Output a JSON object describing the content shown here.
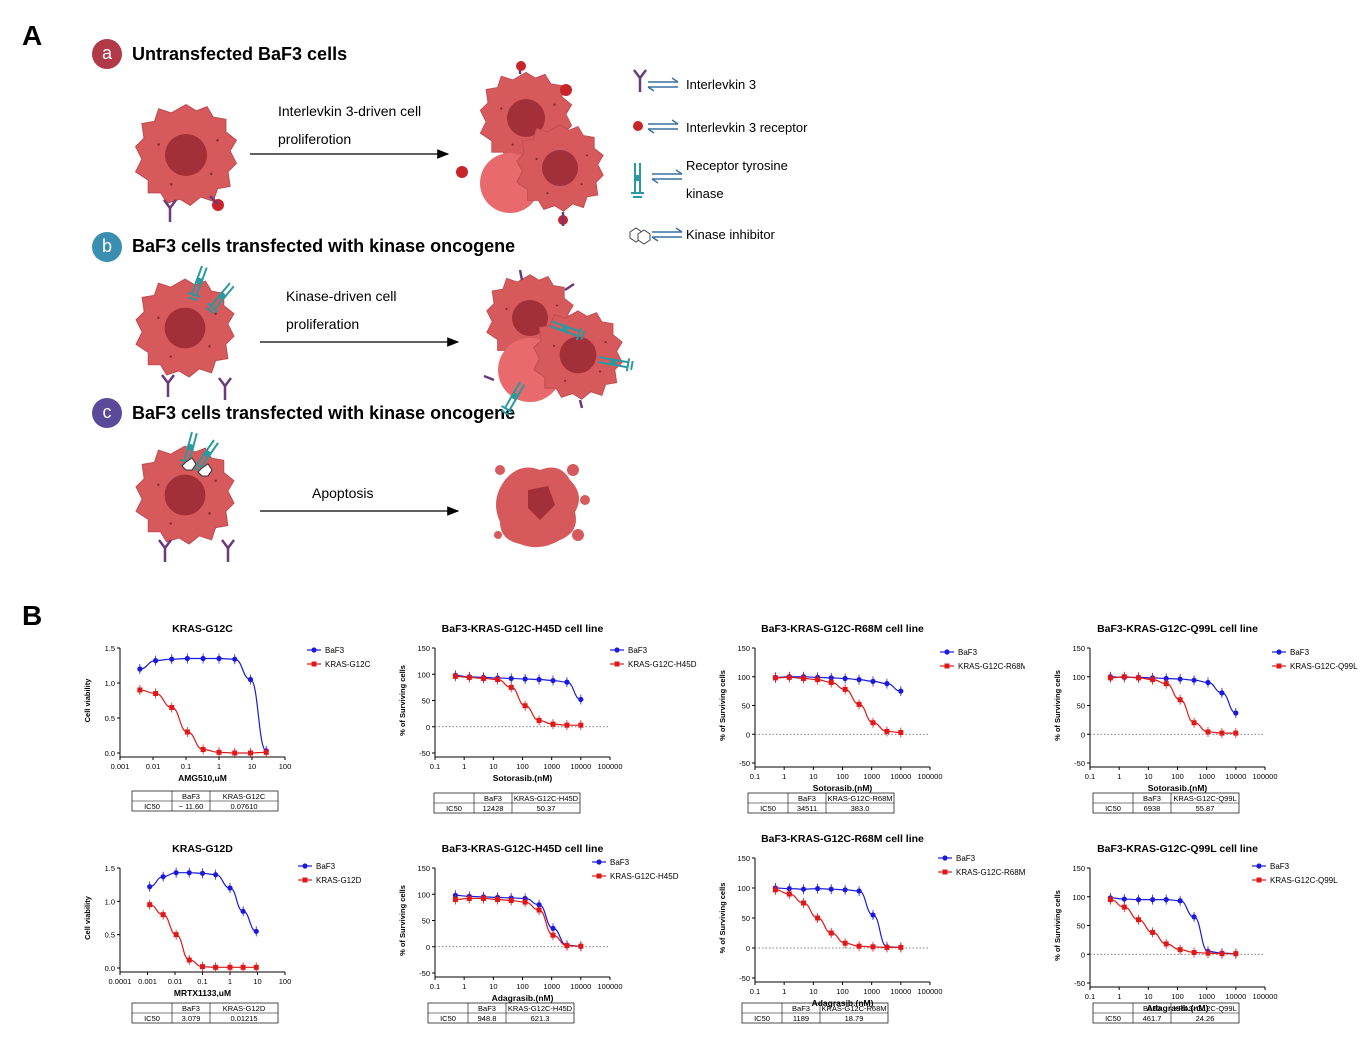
{
  "panelA": {
    "letter": "A",
    "rows": [
      {
        "badge": "a",
        "badge_color": "#b23a48",
        "title": "Untransfected   BaF3  cells",
        "arrow_text": [
          "Interlevkin 3-driven cell",
          "proliferotion"
        ]
      },
      {
        "badge": "b",
        "badge_color": "#3a8fb0",
        "title": "BaF3 cells transfected with kinase oncogene",
        "arrow_text": [
          "Kinase-driven cell",
          "proliferation"
        ]
      },
      {
        "badge": "c",
        "badge_color": "#5b4a9a",
        "title": "BaF3 cells transfected with kinase oncogene",
        "arrow_text": [
          "Apoptosis"
        ]
      }
    ],
    "legend": [
      {
        "icon": "receptor-y-icon",
        "label": "Interlevkin 3"
      },
      {
        "icon": "red-dot-icon",
        "label": "Interlevkin 3 receptor"
      },
      {
        "icon": "rtk-icon",
        "label": "Receptor tyrosine",
        "label2": "kinase"
      },
      {
        "icon": "hexagon-icon",
        "label": "Kinase inhibitor"
      }
    ]
  },
  "panelB": {
    "letter": "B",
    "colors": {
      "baf3": "#1a1adf",
      "mut": "#e01818"
    },
    "charts": [
      {
        "title": "KRAS-G12C",
        "xlabel": "AMG510,uM",
        "ylabel": "Cell viability",
        "xlog": [
          -3,
          2
        ],
        "xticks": [
          "0.001",
          "0.01",
          "0.1",
          "1",
          "10",
          "100"
        ],
        "ylim": [
          0,
          1.5
        ],
        "yticks": [
          "0.0",
          "0.5",
          "1.0",
          "1.5"
        ],
        "zeroline": false,
        "series": [
          {
            "name": "BaF3",
            "x": [
              0.004,
              0.012,
              0.037,
              0.11,
              0.33,
              1,
              3,
              9,
              27
            ],
            "y": [
              1.2,
              1.32,
              1.34,
              1.35,
              1.35,
              1.35,
              1.34,
              1.05,
              0.03
            ]
          },
          {
            "name": "KRAS-G12C",
            "x": [
              0.004,
              0.012,
              0.037,
              0.11,
              0.33,
              1,
              3,
              9,
              27
            ],
            "y": [
              0.9,
              0.85,
              0.65,
              0.3,
              0.05,
              0.01,
              0.0,
              0.0,
              0.01
            ]
          }
        ],
        "table": {
          "headers": [
            "",
            "BaF3",
            "KRAS-G12C"
          ],
          "row": [
            "IC50",
            "~ 11.60",
            "0.07610"
          ]
        }
      },
      {
        "title": "BaF3-KRAS-G12C-H45D cell line",
        "xlabel": "Sotorasib.(nM)",
        "ylabel": "% of Surviving cells",
        "xlog": [
          -1,
          5
        ],
        "xticks": [
          "0.1",
          "1",
          "10",
          "100",
          "1000",
          "10000",
          "100000"
        ],
        "ylim": [
          -50,
          150
        ],
        "yticks": [
          "-50",
          "0",
          "50",
          "100",
          "150"
        ],
        "zeroline": true,
        "series": [
          {
            "name": "BaF3",
            "x": [
              0.5,
              1.5,
              4.6,
              14,
              41,
              123,
              370,
              1111,
              3333,
              10000
            ],
            "y": [
              98,
              95,
              94,
              93,
              92,
              91,
              90,
              88,
              85,
              52
            ]
          },
          {
            "name": "KRAS-G12C-H45D",
            "x": [
              0.5,
              1.5,
              4.6,
              14,
              41,
              123,
              370,
              1111,
              3333,
              10000
            ],
            "y": [
              96,
              94,
              92,
              90,
              75,
              40,
              12,
              5,
              3,
              3
            ]
          }
        ],
        "table": {
          "headers": [
            "",
            "BaF3",
            "KRAS-G12C-H45D"
          ],
          "row": [
            "IC50",
            "12428",
            "50.37"
          ]
        }
      },
      {
        "title": "BaF3-KRAS-G12C-R68M cell line",
        "xlabel": "Sotorasib.(nM)",
        "ylabel": "% of Surviving cells",
        "xlog": [
          -1,
          5
        ],
        "xticks": [
          "0.1",
          "1",
          "10",
          "100",
          "1000",
          "10000",
          "100000"
        ],
        "ylim": [
          -50,
          150
        ],
        "yticks": [
          "-50",
          "0",
          "50",
          "100",
          "150"
        ],
        "zeroline": true,
        "series": [
          {
            "name": "BaF3",
            "x": [
              0.5,
              1.5,
              4.6,
              14,
              41,
              123,
              370,
              1111,
              3333,
              10000
            ],
            "y": [
              99,
              100,
              100,
              99,
              98,
              97,
              95,
              92,
              88,
              75
            ]
          },
          {
            "name": "KRAS-G12C-R68M",
            "x": [
              0.5,
              1.5,
              4.6,
              14,
              41,
              123,
              370,
              1111,
              3333,
              10000
            ],
            "y": [
              98,
              99,
              97,
              95,
              90,
              78,
              52,
              20,
              5,
              3
            ]
          }
        ],
        "table": {
          "headers": [
            "",
            "BaF3",
            "KRAS-G12C-R68M"
          ],
          "row": [
            "IC50",
            "34511",
            "383.0"
          ]
        }
      },
      {
        "title": "BaF3-KRAS-G12C-Q99L cell line",
        "xlabel": "Sotorasib.(nM)",
        "ylabel": "% of Surviving cells",
        "xlog": [
          -1,
          5
        ],
        "xticks": [
          "0.1",
          "1",
          "10",
          "100",
          "1000",
          "10000",
          "100000"
        ],
        "ylim": [
          -50,
          150
        ],
        "yticks": [
          "-50",
          "0",
          "50",
          "100",
          "150"
        ],
        "zeroline": true,
        "series": [
          {
            "name": "BaF3",
            "x": [
              0.5,
              1.5,
              4.6,
              14,
              41,
              123,
              370,
              1111,
              3333,
              10000
            ],
            "y": [
              100,
              99,
              99,
              98,
              97,
              96,
              94,
              90,
              72,
              37
            ]
          },
          {
            "name": "KRAS-G12C-Q99L",
            "x": [
              0.5,
              1.5,
              4.6,
              14,
              41,
              123,
              370,
              1111,
              3333,
              10000
            ],
            "y": [
              98,
              100,
              98,
              95,
              88,
              60,
              20,
              4,
              2,
              2
            ]
          }
        ],
        "table": {
          "headers": [
            "",
            "BaF3",
            "KRAS-G12C-Q99L"
          ],
          "row": [
            "IC50",
            "6938",
            "55.87"
          ]
        }
      },
      {
        "title": "KRAS-G12D",
        "xlabel": "MRTX1133,uM",
        "ylabel": "Cell viability",
        "xlog": [
          -4,
          2
        ],
        "xticks": [
          "0.0001",
          "0.001",
          "0.01",
          "0.1",
          "1",
          "10",
          "100"
        ],
        "ylim": [
          0,
          1.5
        ],
        "yticks": [
          "0.0",
          "0.5",
          "1.0",
          "1.5"
        ],
        "zeroline": false,
        "series": [
          {
            "name": "BaF3",
            "x": [
              0.0012,
              0.0037,
              0.011,
              0.033,
              0.1,
              0.3,
              1,
              3,
              9
            ],
            "y": [
              1.22,
              1.37,
              1.43,
              1.43,
              1.42,
              1.4,
              1.2,
              0.85,
              0.55
            ]
          },
          {
            "name": "KRAS-G12D",
            "x": [
              0.0012,
              0.0037,
              0.011,
              0.033,
              0.1,
              0.3,
              1,
              3,
              9
            ],
            "y": [
              0.95,
              0.8,
              0.5,
              0.12,
              0.02,
              0.01,
              0.01,
              0.01,
              0.01
            ]
          }
        ],
        "table": {
          "headers": [
            "",
            "BaF3",
            "KRAS-G12D"
          ],
          "row": [
            "IC50",
            "3.079",
            "0.01215"
          ]
        }
      },
      {
        "title": "BaF3-KRAS-G12C-H45D cell line",
        "xlabel": "Adagrasib.(nM)",
        "ylabel": "% of Surviving cells",
        "xlog": [
          -1,
          5
        ],
        "xticks": [
          "0.1",
          "1",
          "10",
          "100",
          "1000",
          "10000",
          "100000"
        ],
        "ylim": [
          -50,
          150
        ],
        "yticks": [
          "-50",
          "0",
          "50",
          "100",
          "150"
        ],
        "zeroline": true,
        "series": [
          {
            "name": "BaF3",
            "x": [
              0.5,
              1.5,
              4.6,
              14,
              41,
              123,
              370,
              1111,
              3333,
              10000
            ],
            "y": [
              98,
              96,
              95,
              94,
              93,
              92,
              80,
              35,
              3,
              1
            ]
          },
          {
            "name": "KRAS-G12C-H45D",
            "x": [
              0.5,
              1.5,
              4.6,
              14,
              41,
              123,
              370,
              1111,
              3333,
              10000
            ],
            "y": [
              90,
              92,
              92,
              90,
              88,
              85,
              70,
              22,
              2,
              1
            ]
          }
        ],
        "table": {
          "headers": [
            "",
            "BaF3",
            "KRAS-G12C-H45D"
          ],
          "row": [
            "IC50",
            "948.8",
            "621.3"
          ]
        }
      },
      {
        "title": "BaF3-KRAS-G12C-R68M cell line",
        "xlabel": "Adagrasib.(nM)",
        "ylabel": "% of Surviving cells",
        "xlog": [
          -1,
          5
        ],
        "xticks": [
          "0.1",
          "1",
          "10",
          "100",
          "1000",
          "10000",
          "100000"
        ],
        "ylim": [
          -50,
          150
        ],
        "yticks": [
          "-50",
          "0",
          "50",
          "100",
          "150"
        ],
        "zeroline": true,
        "series": [
          {
            "name": "BaF3",
            "x": [
              0.5,
              1.5,
              4.6,
              14,
              41,
              123,
              370,
              1111,
              3333,
              10000
            ],
            "y": [
              100,
              99,
              98,
              99,
              98,
              97,
              95,
              55,
              2,
              1
            ]
          },
          {
            "name": "KRAS-G12C-R68M",
            "x": [
              0.5,
              1.5,
              4.6,
              14,
              41,
              123,
              370,
              1111,
              3333,
              10000
            ],
            "y": [
              97,
              90,
              75,
              50,
              25,
              8,
              3,
              2,
              1,
              1
            ]
          }
        ],
        "table": {
          "headers": [
            "",
            "BaF3",
            "KRAS-G12C-R68M"
          ],
          "row": [
            "IC50",
            "1189",
            "18.79"
          ]
        }
      },
      {
        "title": "BaF3-KRAS-G12C-Q99L cell line",
        "xlabel": "Adagrasib.(nM)",
        "ylabel": "% of Surviving cells",
        "xlog": [
          -1,
          5
        ],
        "xticks": [
          "0.1",
          "1",
          "10",
          "100",
          "1000",
          "10000",
          "100000"
        ],
        "ylim": [
          -50,
          150
        ],
        "yticks": [
          "-50",
          "0",
          "50",
          "100",
          "150"
        ],
        "zeroline": true,
        "series": [
          {
            "name": "BaF3",
            "x": [
              0.5,
              1.5,
              4.6,
              14,
              41,
              123,
              370,
              1111,
              3333,
              10000
            ],
            "y": [
              98,
              96,
              95,
              95,
              95,
              93,
              65,
              5,
              2,
              1
            ]
          },
          {
            "name": "KRAS-G12C-Q99L",
            "x": [
              0.5,
              1.5,
              4.6,
              14,
              41,
              123,
              370,
              1111,
              3333,
              10000
            ],
            "y": [
              95,
              82,
              60,
              38,
              18,
              8,
              3,
              2,
              1,
              1
            ]
          }
        ],
        "table": {
          "headers": [
            "",
            "BaF3",
            "KRAS-G12C-Q99L"
          ],
          "row": [
            "IC50",
            "461.7",
            "24.26"
          ]
        }
      }
    ]
  }
}
